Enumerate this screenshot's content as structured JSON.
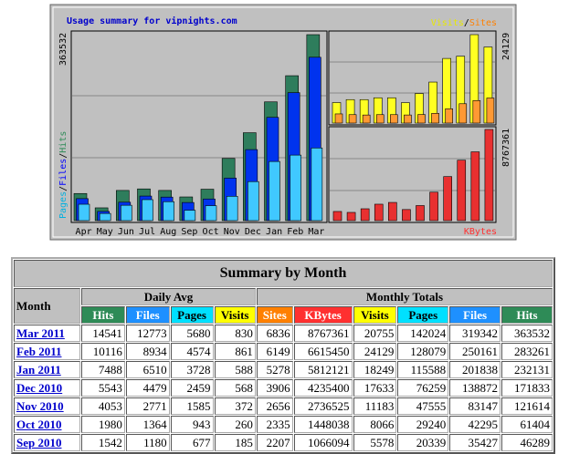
{
  "graph": {
    "title": "Usage summary for vipnights.com",
    "separator": "/",
    "left_legend": {
      "pages": "Pages",
      "files": "Files",
      "hits": "Hits"
    },
    "right_top_legend": {
      "visits": "Visits",
      "sites": "Sites"
    },
    "right_bottom_legend": "KBytes",
    "left_max": 363532,
    "right_top_max": 24129,
    "right_bottom_max": 8767361,
    "months": [
      "Apr",
      "May",
      "Jun",
      "Jul",
      "Aug",
      "Sep",
      "Oct",
      "Nov",
      "Dec",
      "Jan",
      "Feb",
      "Mar"
    ],
    "hits": [
      53000,
      25000,
      59000,
      62000,
      59000,
      46289,
      61404,
      121614,
      171833,
      232131,
      283261,
      363532
    ],
    "files": [
      43000,
      18000,
      36000,
      48000,
      46000,
      35427,
      42295,
      83147,
      138872,
      201838,
      250161,
      319342
    ],
    "pages": [
      32000,
      14000,
      30000,
      41000,
      37000,
      20339,
      29240,
      47555,
      76259,
      115588,
      128079,
      142024
    ],
    "visits": [
      5600,
      6400,
      6400,
      6900,
      6900,
      5578,
      8066,
      11183,
      17633,
      18249,
      24129,
      20755
    ],
    "sites": [
      2500,
      2300,
      2200,
      2300,
      2300,
      2207,
      2335,
      2656,
      3906,
      5278,
      6149,
      6836
    ],
    "kbytes": [
      880000,
      790000,
      1140000,
      1580000,
      1750000,
      1066094,
      1448038,
      2736525,
      4235400,
      5812121,
      6615450,
      8767361
    ]
  },
  "table": {
    "title": "Summary by Month",
    "month_header": "Month",
    "group_headers": [
      "Daily Avg",
      "Monthly Totals"
    ],
    "columns": [
      "Hits",
      "Files",
      "Pages",
      "Visits",
      "Sites",
      "KBytes",
      "Visits",
      "Pages",
      "Files",
      "Hits"
    ],
    "rows": [
      [
        "Mar 2011",
        14541,
        12773,
        5680,
        830,
        6836,
        8767361,
        20755,
        142024,
        319342,
        363532
      ],
      [
        "Feb 2011",
        10116,
        8934,
        4574,
        861,
        6149,
        6615450,
        24129,
        128079,
        250161,
        283261
      ],
      [
        "Jan 2011",
        7488,
        6510,
        3728,
        588,
        5278,
        5812121,
        18249,
        115588,
        201838,
        232131
      ],
      [
        "Dec 2010",
        5543,
        4479,
        2459,
        568,
        3906,
        4235400,
        17633,
        76259,
        138872,
        171833
      ],
      [
        "Nov 2010",
        4053,
        2771,
        1585,
        372,
        2656,
        2736525,
        11183,
        47555,
        83147,
        121614
      ],
      [
        "Oct 2010",
        1980,
        1364,
        943,
        260,
        2335,
        1448038,
        8066,
        29240,
        42295,
        61404
      ],
      [
        "Sep 2010",
        1542,
        1180,
        677,
        185,
        2207,
        1066094,
        5578,
        20339,
        35427,
        46289
      ]
    ]
  }
}
